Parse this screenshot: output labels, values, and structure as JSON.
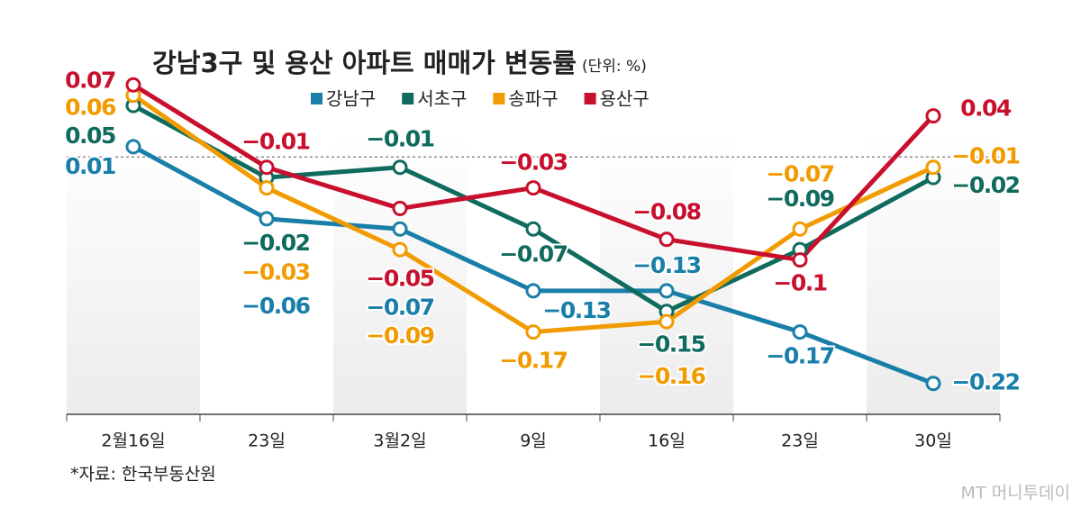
{
  "chart_data": {
    "type": "line",
    "title": "강남3구 및 용산 아파트 매매가 변동률",
    "unit": "(단위: %)",
    "source": "*자료: 한국부동산원",
    "watermark": "MT 머니투데이",
    "categories": [
      "2월16일",
      "23일",
      "3월2일",
      "9일",
      "16일",
      "23일",
      "30일"
    ],
    "ylim": [
      -0.25,
      0.1
    ],
    "series": [
      {
        "name": "강남구",
        "color": "#1a7fa8",
        "values": [
          0.01,
          -0.06,
          -0.07,
          -0.13,
          -0.13,
          -0.17,
          -0.22
        ],
        "value_labels": [
          "0.01",
          "−0.06",
          "−0.07",
          "−0.13",
          "−0.13",
          "−0.17",
          "−0.22"
        ]
      },
      {
        "name": "서초구",
        "color": "#0f6b5e",
        "values": [
          0.05,
          -0.02,
          -0.01,
          -0.07,
          -0.15,
          -0.09,
          -0.02
        ],
        "value_labels": [
          "0.05",
          "−0.02",
          "−0.01",
          "−0.07",
          "−0.15",
          "−0.09",
          "−0.02"
        ]
      },
      {
        "name": "송파구",
        "color": "#f29b00",
        "values": [
          0.06,
          -0.03,
          -0.09,
          -0.17,
          -0.16,
          -0.07,
          -0.01
        ],
        "value_labels": [
          "0.06",
          "−0.03",
          "−0.09",
          "−0.17",
          "−0.16",
          "−0.07",
          "−0.01"
        ]
      },
      {
        "name": "용산구",
        "color": "#c8102e",
        "values": [
          0.07,
          -0.01,
          -0.05,
          -0.03,
          -0.08,
          -0.1,
          0.04
        ],
        "value_labels": [
          "0.07",
          "−0.01",
          "−0.05",
          "−0.03",
          "−0.08",
          "−0.1",
          "0.04"
        ]
      }
    ]
  }
}
